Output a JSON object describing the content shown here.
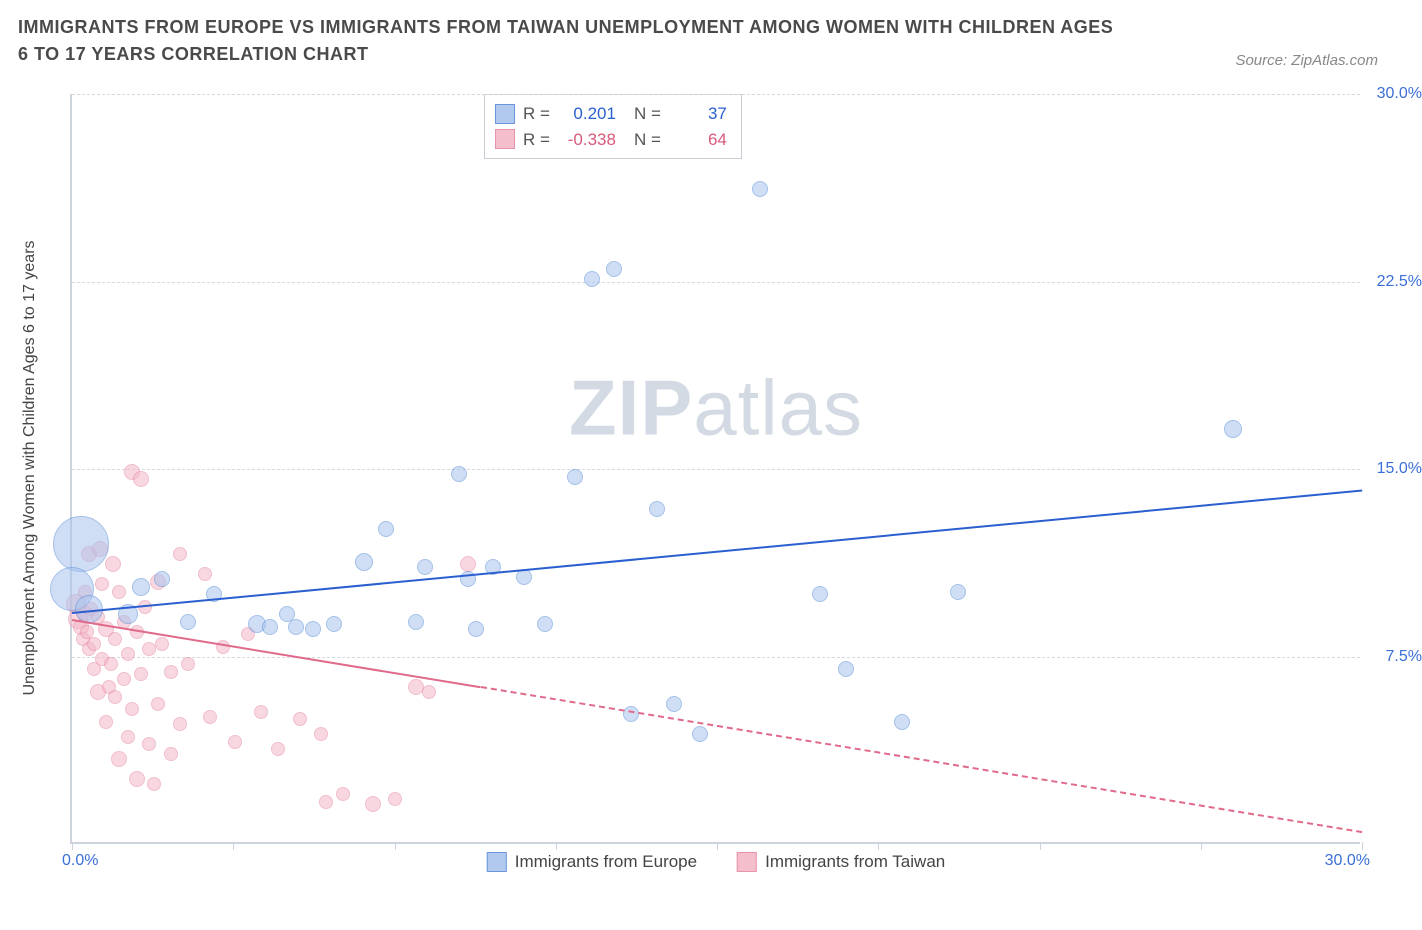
{
  "title": "IMMIGRANTS FROM EUROPE VS IMMIGRANTS FROM TAIWAN UNEMPLOYMENT AMONG WOMEN WITH CHILDREN AGES 6 TO 17 YEARS CORRELATION CHART",
  "source": "Source: ZipAtlas.com",
  "watermark_zip": "ZIP",
  "watermark_atlas": "atlas",
  "ylabel": "Unemployment Among Women with Children Ages 6 to 17 years",
  "chart": {
    "type": "scatter",
    "xlim": [
      0,
      30
    ],
    "ylim": [
      0,
      30
    ],
    "xtick_positions": [
      0,
      3.75,
      7.5,
      11.25,
      15,
      18.75,
      22.5,
      26.25,
      30
    ],
    "ytick_positions": [
      7.5,
      15,
      22.5,
      30
    ],
    "ytick_labels": [
      "7.5%",
      "15.0%",
      "22.5%",
      "30.0%"
    ],
    "xaxis_min_label": "0.0%",
    "xaxis_max_label": "30.0%",
    "grid_color": "#d6d9df",
    "axis_color": "#cdd3dc",
    "background_color": "#ffffff",
    "tick_label_color": "#3a6fd8",
    "tick_fontsize": 16
  },
  "series": {
    "europe": {
      "label": "Immigrants from Europe",
      "color_fill": "#a9c4ee",
      "color_stroke": "#5a8fd8",
      "fill_opacity": 0.55,
      "R": "0.201",
      "N": "37",
      "regression": {
        "x1": 0,
        "y1": 9.3,
        "x2": 30,
        "y2": 14.2,
        "color": "#2a5fd0",
        "dash_after_x": null
      },
      "points": [
        {
          "x": 0.2,
          "y": 12.0,
          "r": 28
        },
        {
          "x": 0.0,
          "y": 10.2,
          "r": 22
        },
        {
          "x": 0.4,
          "y": 9.4,
          "r": 14
        },
        {
          "x": 1.3,
          "y": 9.2,
          "r": 10
        },
        {
          "x": 1.6,
          "y": 10.3,
          "r": 9
        },
        {
          "x": 2.1,
          "y": 10.6,
          "r": 8
        },
        {
          "x": 2.7,
          "y": 8.9,
          "r": 8
        },
        {
          "x": 3.3,
          "y": 10.0,
          "r": 8
        },
        {
          "x": 4.3,
          "y": 8.8,
          "r": 9
        },
        {
          "x": 4.6,
          "y": 8.7,
          "r": 8
        },
        {
          "x": 5.0,
          "y": 9.2,
          "r": 8
        },
        {
          "x": 5.2,
          "y": 8.7,
          "r": 8
        },
        {
          "x": 5.6,
          "y": 8.6,
          "r": 8
        },
        {
          "x": 6.1,
          "y": 8.8,
          "r": 8
        },
        {
          "x": 6.8,
          "y": 11.3,
          "r": 9
        },
        {
          "x": 7.3,
          "y": 12.6,
          "r": 8
        },
        {
          "x": 8.0,
          "y": 8.9,
          "r": 8
        },
        {
          "x": 8.2,
          "y": 11.1,
          "r": 8
        },
        {
          "x": 9.0,
          "y": 14.8,
          "r": 8
        },
        {
          "x": 9.2,
          "y": 10.6,
          "r": 8
        },
        {
          "x": 9.4,
          "y": 8.6,
          "r": 8
        },
        {
          "x": 9.8,
          "y": 11.1,
          "r": 8
        },
        {
          "x": 10.5,
          "y": 10.7,
          "r": 8
        },
        {
          "x": 11.0,
          "y": 8.8,
          "r": 8
        },
        {
          "x": 11.7,
          "y": 14.7,
          "r": 8
        },
        {
          "x": 12.1,
          "y": 22.6,
          "r": 8
        },
        {
          "x": 12.6,
          "y": 23.0,
          "r": 8
        },
        {
          "x": 13.0,
          "y": 5.2,
          "r": 8
        },
        {
          "x": 13.6,
          "y": 13.4,
          "r": 8
        },
        {
          "x": 14.0,
          "y": 5.6,
          "r": 8
        },
        {
          "x": 14.6,
          "y": 4.4,
          "r": 8
        },
        {
          "x": 16.0,
          "y": 26.2,
          "r": 8
        },
        {
          "x": 17.4,
          "y": 10.0,
          "r": 8
        },
        {
          "x": 18.0,
          "y": 7.0,
          "r": 8
        },
        {
          "x": 19.3,
          "y": 4.9,
          "r": 8
        },
        {
          "x": 20.6,
          "y": 10.1,
          "r": 8
        },
        {
          "x": 27.0,
          "y": 16.6,
          "r": 9
        }
      ]
    },
    "taiwan": {
      "label": "Immigrants from Taiwan",
      "color_fill": "#f4b7c7",
      "color_stroke": "#e68aa3",
      "fill_opacity": 0.55,
      "R": "-0.338",
      "N": "64",
      "regression": {
        "x1": 0,
        "y1": 9.0,
        "x2": 30,
        "y2": 0.5,
        "color": "#e06a8a",
        "dash_after_x": 9.5
      },
      "points": [
        {
          "x": 0.1,
          "y": 9.6,
          "r": 10
        },
        {
          "x": 0.15,
          "y": 9.0,
          "r": 10
        },
        {
          "x": 0.2,
          "y": 8.7,
          "r": 8
        },
        {
          "x": 0.25,
          "y": 8.2,
          "r": 7
        },
        {
          "x": 0.3,
          "y": 9.2,
          "r": 8
        },
        {
          "x": 0.3,
          "y": 10.1,
          "r": 7
        },
        {
          "x": 0.35,
          "y": 8.5,
          "r": 7
        },
        {
          "x": 0.4,
          "y": 11.6,
          "r": 8
        },
        {
          "x": 0.4,
          "y": 7.8,
          "r": 7
        },
        {
          "x": 0.45,
          "y": 9.4,
          "r": 7
        },
        {
          "x": 0.5,
          "y": 8.0,
          "r": 7
        },
        {
          "x": 0.5,
          "y": 7.0,
          "r": 7
        },
        {
          "x": 0.6,
          "y": 9.1,
          "r": 7
        },
        {
          "x": 0.6,
          "y": 6.1,
          "r": 8
        },
        {
          "x": 0.65,
          "y": 11.8,
          "r": 8
        },
        {
          "x": 0.7,
          "y": 7.4,
          "r": 7
        },
        {
          "x": 0.7,
          "y": 10.4,
          "r": 7
        },
        {
          "x": 0.8,
          "y": 8.6,
          "r": 8
        },
        {
          "x": 0.8,
          "y": 4.9,
          "r": 7
        },
        {
          "x": 0.85,
          "y": 6.3,
          "r": 7
        },
        {
          "x": 0.9,
          "y": 7.2,
          "r": 7
        },
        {
          "x": 0.95,
          "y": 11.2,
          "r": 8
        },
        {
          "x": 1.0,
          "y": 5.9,
          "r": 7
        },
        {
          "x": 1.0,
          "y": 8.2,
          "r": 7
        },
        {
          "x": 1.1,
          "y": 3.4,
          "r": 8
        },
        {
          "x": 1.1,
          "y": 10.1,
          "r": 7
        },
        {
          "x": 1.2,
          "y": 6.6,
          "r": 7
        },
        {
          "x": 1.2,
          "y": 8.9,
          "r": 7
        },
        {
          "x": 1.3,
          "y": 7.6,
          "r": 7
        },
        {
          "x": 1.3,
          "y": 4.3,
          "r": 7
        },
        {
          "x": 1.4,
          "y": 5.4,
          "r": 7
        },
        {
          "x": 1.4,
          "y": 14.9,
          "r": 8
        },
        {
          "x": 1.5,
          "y": 8.5,
          "r": 7
        },
        {
          "x": 1.5,
          "y": 2.6,
          "r": 8
        },
        {
          "x": 1.6,
          "y": 6.8,
          "r": 7
        },
        {
          "x": 1.6,
          "y": 14.6,
          "r": 8
        },
        {
          "x": 1.7,
          "y": 9.5,
          "r": 7
        },
        {
          "x": 1.8,
          "y": 7.8,
          "r": 7
        },
        {
          "x": 1.8,
          "y": 4.0,
          "r": 7
        },
        {
          "x": 1.9,
          "y": 2.4,
          "r": 7
        },
        {
          "x": 2.0,
          "y": 10.5,
          "r": 8
        },
        {
          "x": 2.0,
          "y": 5.6,
          "r": 7
        },
        {
          "x": 2.1,
          "y": 8.0,
          "r": 7
        },
        {
          "x": 2.3,
          "y": 3.6,
          "r": 7
        },
        {
          "x": 2.3,
          "y": 6.9,
          "r": 7
        },
        {
          "x": 2.5,
          "y": 11.6,
          "r": 7
        },
        {
          "x": 2.5,
          "y": 4.8,
          "r": 7
        },
        {
          "x": 2.7,
          "y": 7.2,
          "r": 7
        },
        {
          "x": 3.1,
          "y": 10.8,
          "r": 7
        },
        {
          "x": 3.2,
          "y": 5.1,
          "r": 7
        },
        {
          "x": 3.5,
          "y": 7.9,
          "r": 7
        },
        {
          "x": 3.8,
          "y": 4.1,
          "r": 7
        },
        {
          "x": 4.1,
          "y": 8.4,
          "r": 7
        },
        {
          "x": 4.4,
          "y": 5.3,
          "r": 7
        },
        {
          "x": 4.8,
          "y": 3.8,
          "r": 7
        },
        {
          "x": 5.3,
          "y": 5.0,
          "r": 7
        },
        {
          "x": 5.8,
          "y": 4.4,
          "r": 7
        },
        {
          "x": 5.9,
          "y": 1.7,
          "r": 7
        },
        {
          "x": 6.3,
          "y": 2.0,
          "r": 7
        },
        {
          "x": 7.0,
          "y": 1.6,
          "r": 8
        },
        {
          "x": 7.5,
          "y": 1.8,
          "r": 7
        },
        {
          "x": 8.0,
          "y": 6.3,
          "r": 8
        },
        {
          "x": 8.3,
          "y": 6.1,
          "r": 7
        },
        {
          "x": 9.2,
          "y": 11.2,
          "r": 8
        }
      ]
    }
  },
  "stats_box": {
    "r_label": "R =",
    "n_label": "N ="
  },
  "legend_labels": {
    "europe": "Immigrants from Europe",
    "taiwan": "Immigrants from Taiwan"
  }
}
